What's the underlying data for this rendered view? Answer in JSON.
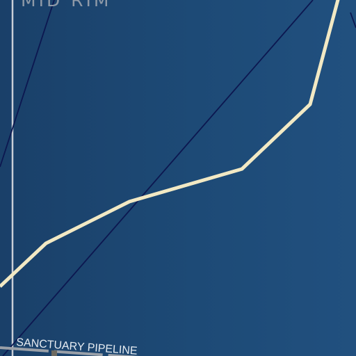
{
  "map": {
    "region_label": "MID RIM",
    "pipeline_label": "SANCTUARY PIPELINE",
    "colors": {
      "background": "#1d4a76",
      "hyperlane": "#f2e9c4",
      "border": "#c9ced6",
      "trade_route": "#0c1750",
      "pipeline": "#9aa0a8",
      "pipeline_marker": "#6e6a60"
    }
  }
}
